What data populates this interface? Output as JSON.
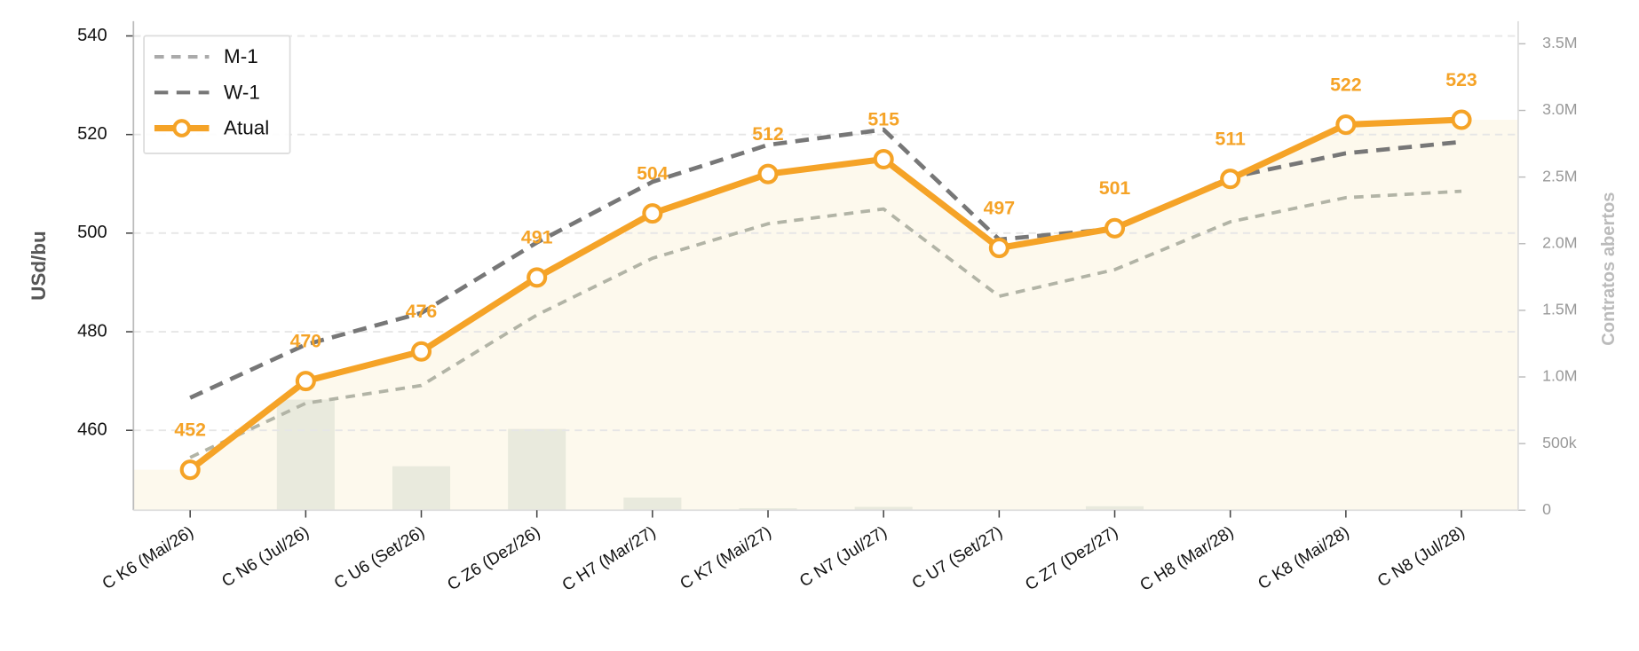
{
  "chart_data": {
    "type": "line",
    "categories": [
      "C K6 (Mai/26)",
      "C N6 (Jul/26)",
      "C U6 (Set/26)",
      "C Z6 (Dez/26)",
      "C H7 (Mar/27)",
      "C K7 (Mai/27)",
      "C N7 (Jul/27)",
      "C U7 (Set/27)",
      "C Z7 (Dez/27)",
      "C H8 (Mar/28)",
      "C K8 (Mai/28)",
      "C N8 (Jul/28)"
    ],
    "y_label": "USd/bu",
    "y2_label": "Contratos abertos",
    "ylim": [
      443.8,
      543
    ],
    "yticks": [
      460,
      480,
      500,
      520,
      540
    ],
    "y2lim": [
      0,
      3670000
    ],
    "y2ticks": [
      0,
      {
        "value": 500000,
        "label": "500k"
      },
      {
        "value": 1000000,
        "label": "1.0M"
      },
      {
        "value": 1500000,
        "label": "1.5M"
      },
      {
        "value": 2000000,
        "label": "2.0M"
      },
      {
        "value": 2500000,
        "label": "2.5M"
      },
      {
        "value": 3000000,
        "label": "3.0M"
      },
      {
        "value": 3500000,
        "label": "3.5M"
      }
    ],
    "grid": true,
    "legend": "upper left",
    "series": [
      {
        "name": "M-1",
        "color": "#b2b4a6",
        "legend_color": "#aaaaaa",
        "linestyle": "dashed",
        "values": [
          454.5,
          465.5,
          469.1,
          483.4,
          494.9,
          501.9,
          504.9,
          487.2,
          492.6,
          502.3,
          507.2,
          508.5
        ]
      },
      {
        "name": "W-1",
        "color": "#777777",
        "linestyle": "dashed",
        "values": [
          466.6,
          477.4,
          483.8,
          498.1,
          510.4,
          517.9,
          521,
          498.7,
          500.9,
          511.3,
          516.2,
          518.5
        ]
      },
      {
        "name": "Atual",
        "color": "#f5a327",
        "linestyle": "solid",
        "markers": true,
        "data_labels": true,
        "values": [
          452,
          470,
          476,
          491,
          504,
          512,
          515,
          497,
          501,
          511,
          522,
          523
        ]
      }
    ],
    "bars": {
      "axis": "y2",
      "color": "#e9eadd",
      "values": [
        0,
        830000,
        330000,
        610000,
        95000,
        15000,
        25000,
        0,
        30000,
        0,
        0,
        0
      ]
    }
  }
}
